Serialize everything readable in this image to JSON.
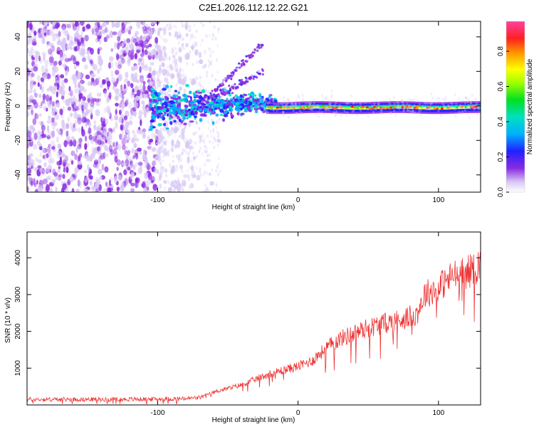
{
  "chart_data": [
    {
      "type": "heatmap",
      "title": "C2E1.2026.112.12.22.G21",
      "xlabel": "Height of straight line (km)",
      "ylabel": "Frequency (Hz)",
      "xlim": [
        -193,
        130
      ],
      "ylim": [
        -50,
        49
      ],
      "xticks": [
        -100,
        0,
        100
      ],
      "yticks": [
        -40,
        -20,
        0,
        20,
        40
      ],
      "colorbar": {
        "label": "Normalized spectral amplitude",
        "range": [
          0.0,
          0.97
        ],
        "ticks": [
          0.0,
          0.2,
          0.4,
          0.6,
          0.8
        ]
      },
      "description_regions": [
        {
          "x_from": -193,
          "x_to": -60,
          "pattern": "scattered low-amplitude noise across all frequencies"
        },
        {
          "x_from": -100,
          "x_to": -20,
          "pattern": "broadening signal near 0 Hz with rising branches"
        },
        {
          "x_from": -20,
          "x_to": 130,
          "pattern": "narrow strong line near 0 Hz"
        }
      ]
    },
    {
      "type": "line",
      "title": "",
      "xlabel": "Height of straight line (km)",
      "ylabel": "SNR (10 * v/v)",
      "xlim": [
        -193,
        130
      ],
      "ylim": [
        0,
        4700
      ],
      "xticks": [
        -100,
        0,
        100
      ],
      "yticks": [
        1000,
        2000,
        3000,
        4000
      ],
      "color": "#ee3333",
      "series": [
        {
          "name": "SNR",
          "x": [
            -193,
            -160,
            -130,
            -100,
            -80,
            -70,
            -60,
            -50,
            -40,
            -30,
            -20,
            -10,
            0,
            10,
            20,
            30,
            40,
            50,
            60,
            70,
            80,
            85,
            90,
            100,
            110,
            120,
            130
          ],
          "values": [
            150,
            150,
            150,
            160,
            170,
            200,
            350,
            450,
            550,
            700,
            850,
            950,
            1050,
            1200,
            1550,
            1800,
            1950,
            2100,
            2200,
            2300,
            2400,
            2500,
            3000,
            3200,
            3500,
            3600,
            3800
          ]
        }
      ]
    }
  ]
}
